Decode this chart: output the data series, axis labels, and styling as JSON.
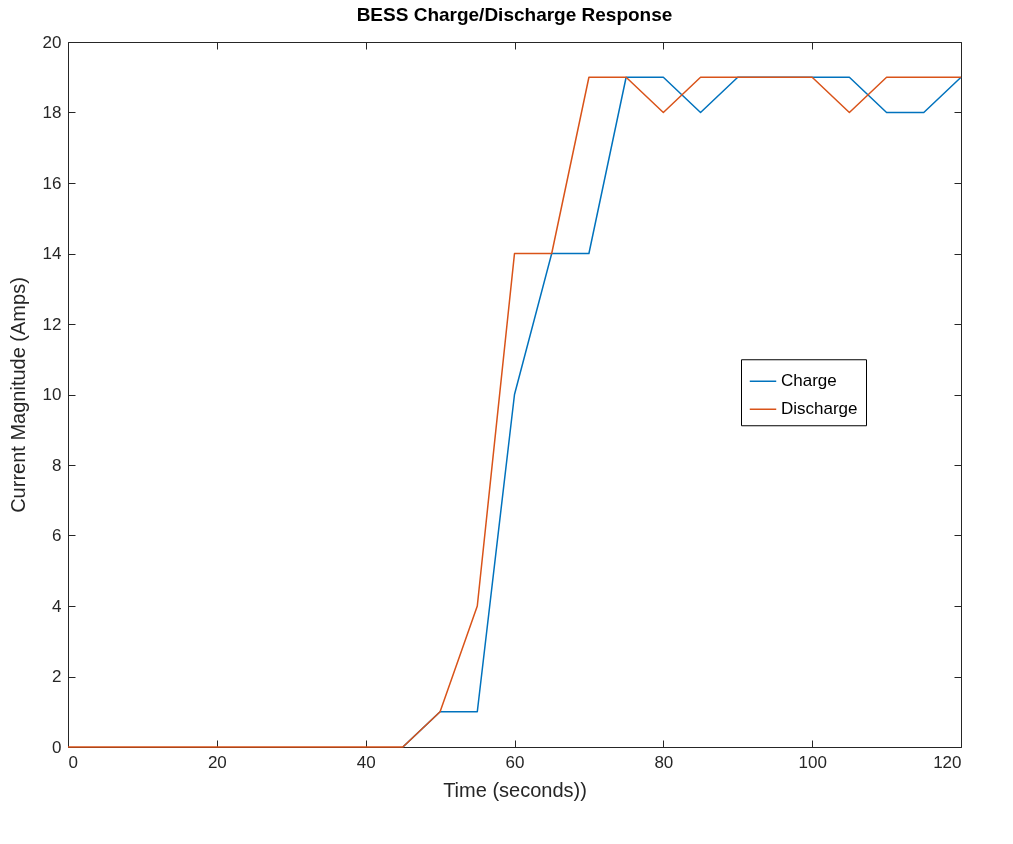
{
  "chart_data": {
    "type": "line",
    "title": "BESS Charge/Discharge Response",
    "xlabel": "Time (seconds))",
    "ylabel": "Current Magnitude (Amps)",
    "x": [
      0,
      5,
      10,
      15,
      20,
      25,
      30,
      35,
      40,
      45,
      50,
      55,
      60,
      65,
      70,
      75,
      80,
      85,
      90,
      95,
      100,
      105,
      110,
      115,
      120
    ],
    "series": [
      {
        "name": "Charge",
        "color": "#0072bd",
        "values": [
          null,
          null,
          null,
          null,
          null,
          null,
          null,
          null,
          null,
          0,
          1,
          1,
          10,
          14,
          14,
          19,
          19,
          18,
          19,
          19,
          19,
          19,
          18,
          18,
          19
        ]
      },
      {
        "name": "Discharge",
        "color": "#d95319",
        "values": [
          0,
          0,
          0,
          0,
          0,
          0,
          0,
          0,
          0,
          0,
          1,
          4,
          14,
          14,
          19,
          19,
          18,
          19,
          19,
          19,
          19,
          18,
          19,
          19,
          19
        ]
      }
    ],
    "xlim": [
      0,
      120
    ],
    "xticks": [
      0,
      20,
      40,
      60,
      80,
      100,
      120
    ],
    "ylim": [
      0,
      20
    ],
    "yticks": [
      0,
      2,
      4,
      6,
      8,
      10,
      12,
      14,
      16,
      18,
      20
    ],
    "grid": false,
    "legend": "right",
    "line_style": "solid"
  }
}
